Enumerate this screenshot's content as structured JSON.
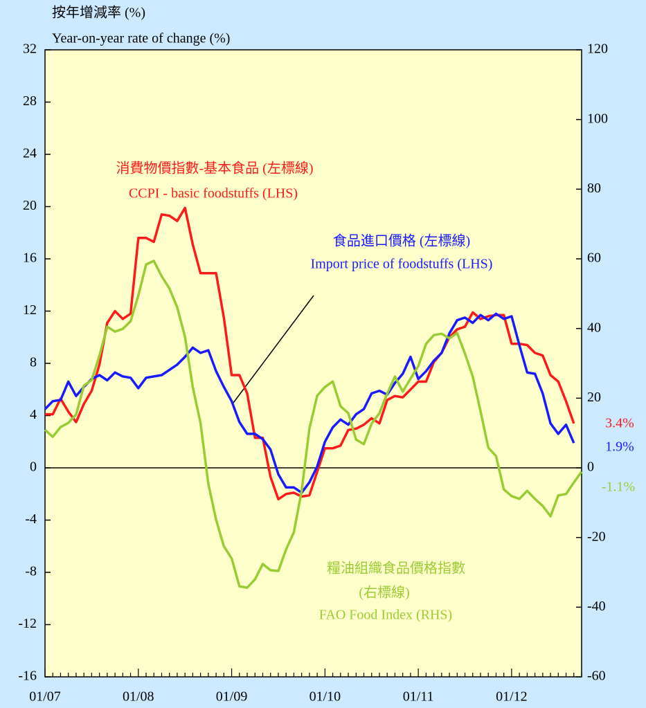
{
  "chart_data": {
    "type": "line",
    "title_zh": "按年增減率 (%)",
    "title": "Year-on-year rate of change (%)",
    "categories": [
      "01/07",
      null,
      null,
      null,
      null,
      null,
      null,
      null,
      null,
      null,
      null,
      null,
      "01/08",
      null,
      null,
      null,
      null,
      null,
      null,
      null,
      null,
      null,
      null,
      null,
      "01/09",
      null,
      null,
      null,
      null,
      null,
      null,
      null,
      null,
      null,
      null,
      null,
      "01/10",
      null,
      null,
      null,
      null,
      null,
      null,
      null,
      null,
      null,
      null,
      null,
      "01/11",
      null,
      null,
      null,
      null,
      null,
      null,
      null,
      null,
      null,
      null,
      null,
      "01/12",
      null,
      null,
      null,
      null,
      null,
      null,
      null,
      null,
      null
    ],
    "ylim": [
      -16,
      32
    ],
    "yticks": [
      -16,
      -12,
      -8,
      -4,
      0,
      4,
      8,
      12,
      16,
      20,
      24,
      28,
      32
    ],
    "y2lim": [
      -60,
      120
    ],
    "y2ticks": [
      -60,
      -40,
      -20,
      0,
      20,
      40,
      60,
      80,
      100,
      120
    ],
    "series": [
      {
        "name": "CCPI - basic foodstuffs (LHS)",
        "name_zh": "消費物價指數-基本食品 (左標線)",
        "color": "#ff1a1a",
        "axis": "y",
        "last_label": "3.4%",
        "values": [
          4.1,
          4.1,
          5.3,
          4.3,
          3.5,
          4.9,
          5.9,
          7.9,
          11.1,
          12.0,
          11.4,
          11.8,
          17.6,
          17.6,
          17.3,
          19.4,
          19.3,
          18.9,
          19.9,
          17.1,
          14.9,
          14.9,
          14.9,
          11.5,
          7.1,
          7.1,
          5.7,
          2.3,
          2.3,
          -0.7,
          -2.4,
          -2.0,
          -1.9,
          -2.2,
          -2.1,
          -0.3,
          1.5,
          1.5,
          1.7,
          2.9,
          3.0,
          3.3,
          3.8,
          3.4,
          5.2,
          5.5,
          5.4,
          6.0,
          6.6,
          6.6,
          8.1,
          8.8,
          10.0,
          10.6,
          10.8,
          11.9,
          11.4,
          11.6,
          11.7,
          11.7,
          9.5,
          9.5,
          9.4,
          8.8,
          8.6,
          7.1,
          6.6,
          5.1,
          3.4,
          null
        ]
      },
      {
        "name": "Import price of foodstuffs (LHS)",
        "name_zh": "食品進口價格 (左標線)",
        "color": "#1a1aff",
        "axis": "y",
        "last_label": "1.9%",
        "values": [
          4.5,
          5.1,
          5.2,
          6.6,
          5.5,
          6.2,
          6.8,
          7.1,
          6.7,
          7.3,
          7.0,
          6.9,
          6.1,
          6.9,
          7.0,
          7.1,
          7.5,
          7.9,
          8.5,
          9.2,
          8.8,
          9.0,
          7.4,
          6.2,
          5.1,
          3.5,
          2.6,
          2.6,
          2.2,
          1.4,
          -0.5,
          -1.5,
          -1.5,
          -1.9,
          -1.1,
          0.1,
          2.0,
          3.1,
          3.7,
          3.3,
          4.1,
          4.5,
          5.7,
          5.9,
          5.6,
          6.5,
          7.2,
          8.5,
          6.8,
          7.4,
          8.2,
          8.8,
          10.3,
          11.3,
          11.5,
          11.1,
          11.7,
          11.3,
          11.8,
          11.4,
          11.6,
          9.4,
          7.3,
          7.2,
          5.7,
          3.4,
          2.6,
          3.3,
          1.9,
          null
        ]
      },
      {
        "name": "FAO Food Index (RHS)",
        "name_zh": "糧油組織食品價格指數",
        "name_zh2": "(右標線)",
        "color": "#99cc33",
        "axis": "y2",
        "last_label": "-1.1%",
        "values": [
          10.9,
          8.9,
          11.7,
          12.9,
          15.3,
          23.6,
          25.2,
          32.2,
          40.5,
          39.1,
          39.9,
          42.1,
          49.5,
          58.4,
          59.4,
          55.0,
          51.5,
          46.1,
          37.6,
          23.2,
          12.9,
          -4.6,
          -14.9,
          -22.5,
          -26.0,
          -34.0,
          -34.4,
          -32.0,
          -27.6,
          -29.4,
          -29.6,
          -23.4,
          -18.5,
          -6.6,
          11.3,
          20.7,
          23.2,
          24.8,
          17.7,
          15.7,
          8.1,
          6.8,
          12.7,
          15.7,
          21.3,
          26.2,
          21.9,
          25.6,
          29.2,
          35.6,
          38.1,
          38.5,
          37.2,
          38.7,
          32.8,
          26.2,
          16.3,
          5.8,
          3.4,
          -6.2,
          -8.1,
          -8.9,
          -6.6,
          -8.9,
          -10.9,
          -13.9,
          -7.9,
          -7.5,
          -4.2,
          -1.1
        ]
      }
    ]
  }
}
